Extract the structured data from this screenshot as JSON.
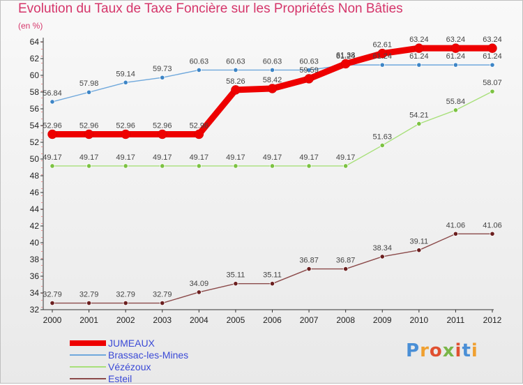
{
  "title": "Evolution du Taux de Taxe Foncière sur les Propriétés Non Bâties",
  "unit_label": "(en %)",
  "logo": {
    "letters": [
      "P",
      "r",
      "o",
      "x",
      "i",
      "t",
      "i"
    ],
    "colors": [
      "#4a8fd6",
      "#f0a030",
      "#e05030",
      "#7ab648",
      "#e05030",
      "#4a8fd6",
      "#f0a030"
    ]
  },
  "chart_data": {
    "type": "line",
    "title": "Evolution du Taux de Taxe Foncière sur les Propriétés Non Bâties",
    "ylabel": "(en %)",
    "xlabel": "",
    "x": [
      "2000",
      "2001",
      "2002",
      "2003",
      "2004",
      "2005",
      "2006",
      "2007",
      "2008",
      "2009",
      "2010",
      "2011",
      "2012"
    ],
    "ylim": [
      32,
      64
    ],
    "yticks": [
      32,
      34,
      36,
      38,
      40,
      42,
      44,
      46,
      48,
      50,
      52,
      54,
      56,
      58,
      60,
      62,
      64
    ],
    "grid": false,
    "legend_position": "bottom-left",
    "series": [
      {
        "name": "JUMEAUX",
        "color": "#ee0000",
        "marker_color": "#ee0000",
        "thick": true,
        "values": [
          52.96,
          52.96,
          52.96,
          52.96,
          52.96,
          58.26,
          58.42,
          59.59,
          61.38,
          62.61,
          63.24,
          63.24,
          63.24
        ],
        "labels": [
          "52.96",
          "52.96",
          "52.96",
          "52.96",
          "52.96",
          "58.26",
          "58.42",
          "59.59",
          "61.38",
          "62.61",
          "63.24",
          "63.24",
          "63.24"
        ]
      },
      {
        "name": "Brassac-les-Mines",
        "color": "#6fa8dc",
        "marker_color": "#3d85c6",
        "thick": false,
        "values": [
          56.84,
          57.98,
          59.14,
          59.73,
          60.63,
          60.63,
          60.63,
          60.63,
          61.24,
          61.24,
          61.24,
          61.24,
          61.24
        ],
        "labels": [
          "56.84",
          "57.98",
          "59.14",
          "59.73",
          "60.63",
          "60.63",
          "60.63",
          "60.63",
          "61.24",
          "61.24",
          "61.24",
          "61.24",
          "61.24"
        ]
      },
      {
        "name": "Vézézoux",
        "color": "#a8e07a",
        "marker_color": "#7cc242",
        "thick": false,
        "values": [
          49.17,
          49.17,
          49.17,
          49.17,
          49.17,
          49.17,
          49.17,
          49.17,
          49.17,
          51.63,
          54.21,
          55.84,
          58.07
        ],
        "labels": [
          "49.17",
          "49.17",
          "49.17",
          "49.17",
          "49.17",
          "49.17",
          "49.17",
          "49.17",
          "49.17",
          "51.63",
          "54.21",
          "55.84",
          "58.07"
        ]
      },
      {
        "name": "Esteil",
        "color": "#8b4a4a",
        "marker_color": "#6b1f1f",
        "thick": false,
        "values": [
          32.79,
          32.79,
          32.79,
          32.79,
          34.09,
          35.11,
          35.11,
          36.87,
          36.87,
          38.34,
          39.11,
          41.06,
          41.06
        ],
        "labels": [
          "32.79",
          "32.79",
          "32.79",
          "32.79",
          "34.09",
          "35.11",
          "35.11",
          "36.87",
          "36.87",
          "38.34",
          "39.11",
          "41.06",
          "41.06"
        ]
      }
    ]
  }
}
